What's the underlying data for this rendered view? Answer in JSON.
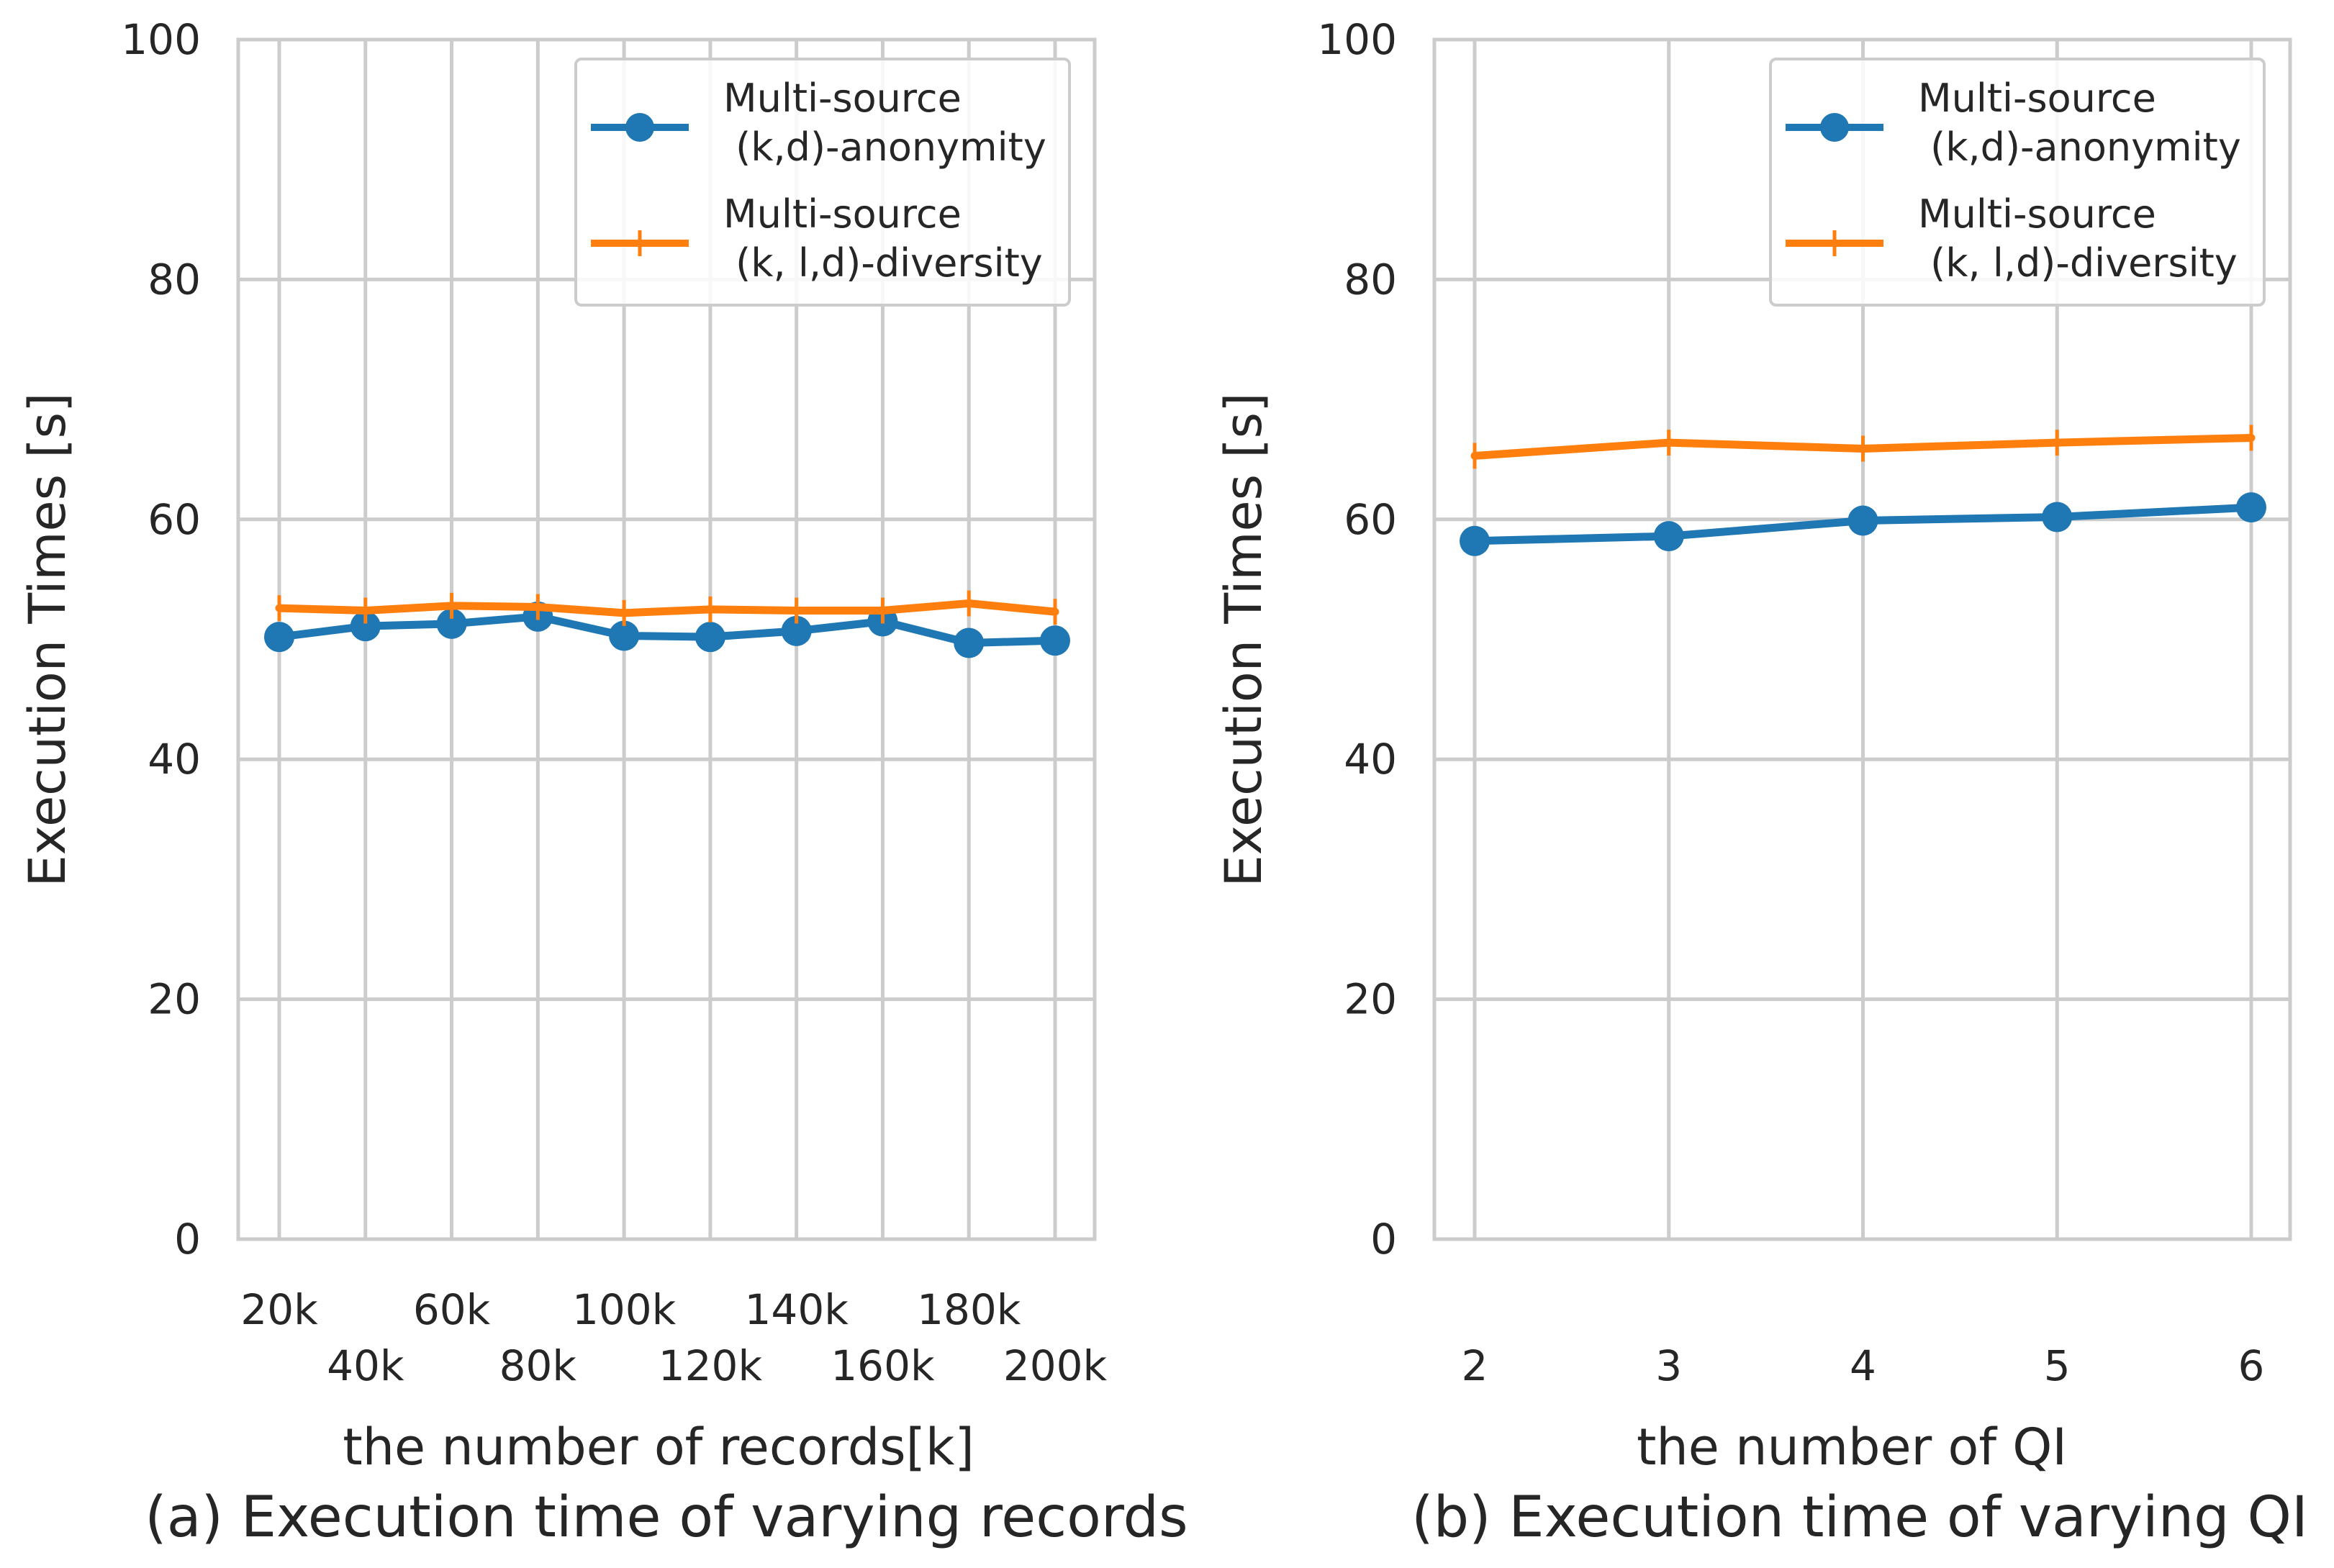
{
  "colors": {
    "series1": "#1f77b4",
    "series2": "#ff7f0e",
    "grid": "#cccccc",
    "text": "#262626"
  },
  "chart_data": [
    {
      "type": "line",
      "caption": "(a) Execution time of varying records",
      "xlabel": "the number of records[k]",
      "ylabel": "Execution Times [s]",
      "ylim": [
        0,
        100
      ],
      "yticks": [
        "0",
        "20",
        "40",
        "60",
        "80",
        "100"
      ],
      "categories": [
        "20k",
        "40k",
        "60k",
        "80k",
        "100k",
        "120k",
        "140k",
        "160k",
        "180k",
        "200k"
      ],
      "grid": true,
      "legend_position": "top-right",
      "series": [
        {
          "name_line1": "Multi-source",
          "name_line2": " (k,d)-anonymity",
          "marker": "circle",
          "values": [
            50.2,
            51.1,
            51.3,
            51.9,
            50.3,
            50.2,
            50.7,
            51.5,
            49.7,
            49.9
          ]
        },
        {
          "name_line1": "Multi-source",
          "name_line2": " (k, l,d)-diversity",
          "marker": "plus",
          "values": [
            52.6,
            52.4,
            52.8,
            52.7,
            52.2,
            52.5,
            52.4,
            52.4,
            53.0,
            52.3
          ]
        }
      ]
    },
    {
      "type": "line",
      "caption": "(b) Execution time of varying QI",
      "xlabel": "the number of QI",
      "ylabel": "Execution Times [s]",
      "ylim": [
        0,
        100
      ],
      "yticks": [
        "0",
        "20",
        "40",
        "60",
        "80",
        "100"
      ],
      "categories": [
        "2",
        "3",
        "4",
        "5",
        "6"
      ],
      "grid": true,
      "legend_position": "top-right",
      "series": [
        {
          "name_line1": "Multi-source",
          "name_line2": " (k,d)-anonymity",
          "marker": "circle",
          "values": [
            58.2,
            58.6,
            59.9,
            60.2,
            61.0
          ]
        },
        {
          "name_line1": "Multi-source",
          "name_line2": " (k, l,d)-diversity",
          "marker": "plus",
          "values": [
            65.3,
            66.4,
            65.9,
            66.4,
            66.8
          ]
        }
      ]
    }
  ]
}
